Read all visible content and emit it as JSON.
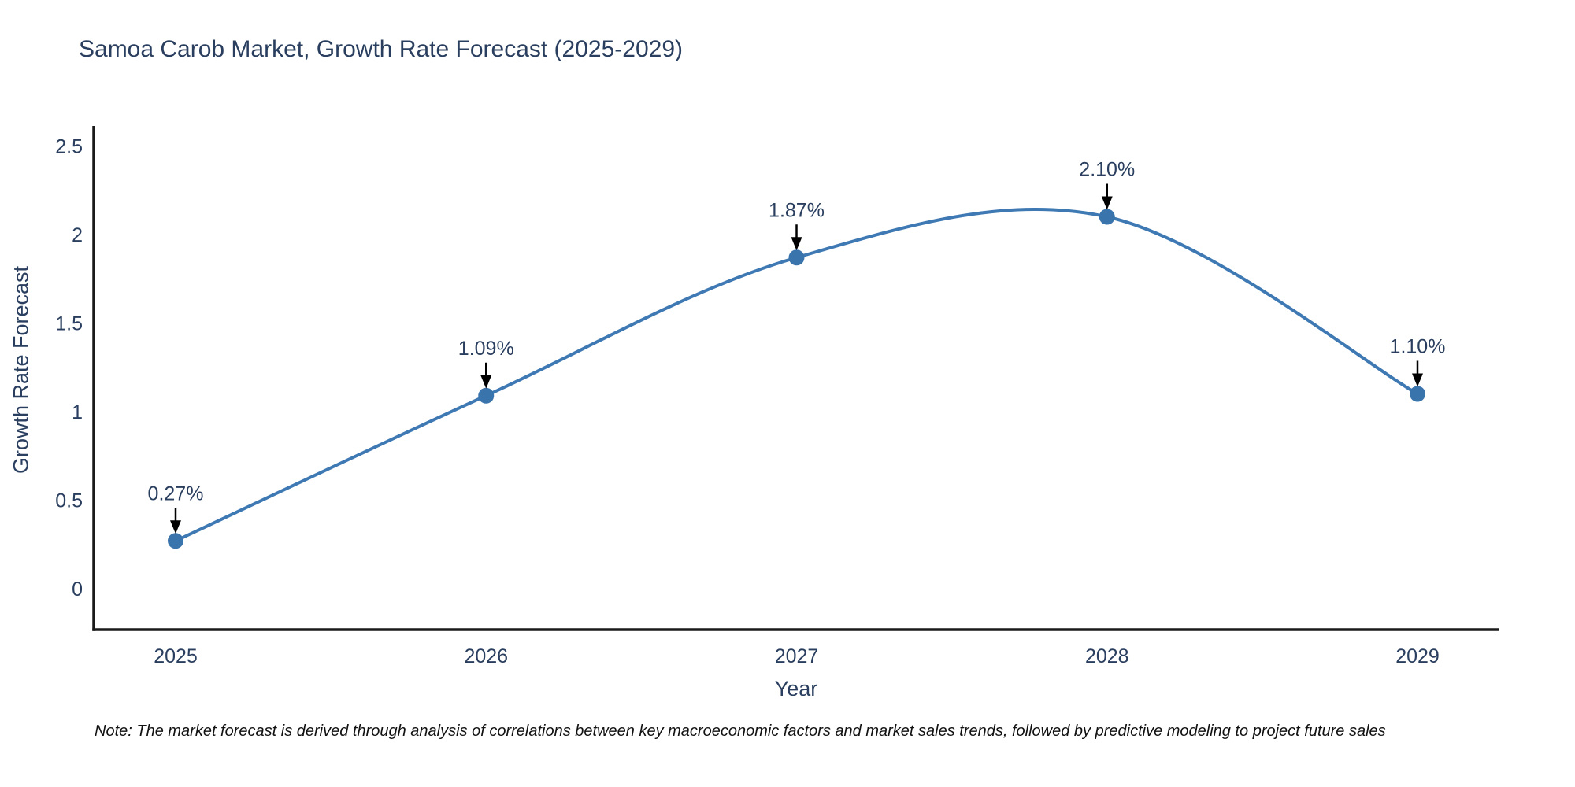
{
  "title": "Samoa Carob Market, Growth Rate Forecast (2025-2029)",
  "note": "Note: The market forecast is derived through analysis of correlations between key macroeconomic factors and market sales trends, followed by predictive modeling to project future sales",
  "colors": {
    "line": "#3e79b4",
    "marker": "#3a74ad",
    "text": "#2a3f5f",
    "axis": "#1a1a1a",
    "annotation_arrow": "#000000",
    "background": "#ffffff"
  },
  "chart_data": {
    "type": "line",
    "title": "Samoa Carob Market, Growth Rate Forecast (2025-2029)",
    "xlabel": "Year",
    "ylabel": "Growth Rate Forecast",
    "categories": [
      "2025",
      "2026",
      "2027",
      "2028",
      "2029"
    ],
    "values": [
      0.27,
      1.09,
      1.87,
      2.1,
      1.1
    ],
    "point_labels": [
      "0.27%",
      "1.09%",
      "1.87%",
      "2.10%",
      "1.10%"
    ],
    "yticks": [
      "0",
      "0.5",
      "1",
      "1.5",
      "2",
      "2.5"
    ],
    "ylim": [
      -0.24,
      2.62
    ],
    "grid": false,
    "legend": "none",
    "line_shape": "spline",
    "annotations": "value labels with downward arrows above each point"
  }
}
